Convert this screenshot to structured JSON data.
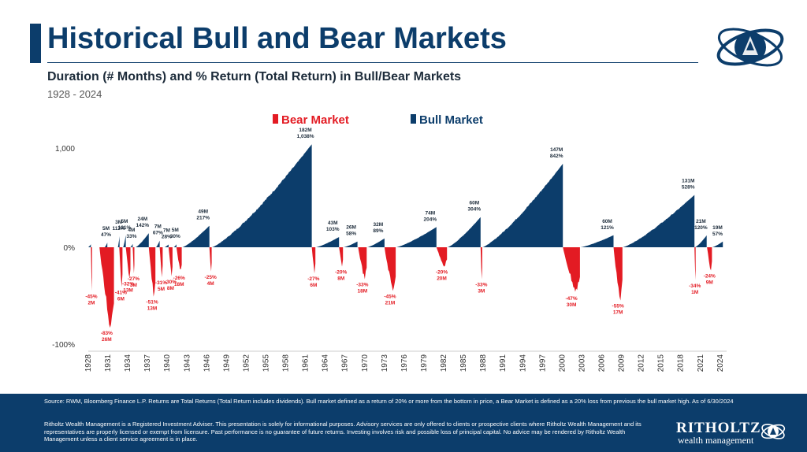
{
  "header": {
    "title": "Historical Bull and Bear Markets",
    "subtitle": "Duration (# Months) and % Return (Total Return) in Bull/Bear Markets",
    "date_range": "1928 - 2024"
  },
  "colors": {
    "bull": "#0c3d6b",
    "bear": "#e31b23",
    "text": "#1c2b3a"
  },
  "chart_data": {
    "type": "area",
    "legend": {
      "placement": "top-center",
      "entries": [
        {
          "name": "Bear Market",
          "color": "#e31b23"
        },
        {
          "name": "Bull Market",
          "color": "#0c3d6b"
        }
      ]
    },
    "y_ticks": [
      {
        "value": 1000,
        "label": "1,000"
      },
      {
        "value": 0,
        "label": "0%"
      },
      {
        "value": -100,
        "label": "-100%"
      }
    ],
    "ylim": [
      -100,
      1000
    ],
    "x_ticks": [
      "1928",
      "1931",
      "1934",
      "1937",
      "1940",
      "1943",
      "1946",
      "1949",
      "1952",
      "1955",
      "1958",
      "1961",
      "1964",
      "1967",
      "1970",
      "1973",
      "1976",
      "1979",
      "1982",
      "1985",
      "1988",
      "1991",
      "1994",
      "1997",
      "2000",
      "2003",
      "2006",
      "2009",
      "2012",
      "2015",
      "2018",
      "2021",
      "2024"
    ],
    "xlim": [
      1928,
      2024.5
    ],
    "series": [
      {
        "name": "Bull Market",
        "type": "bull",
        "markets": [
          {
            "start": 1928.0,
            "end": 1928.4,
            "months": "",
            "return": 30,
            "label": ""
          },
          {
            "start": 1930.5,
            "end": 1930.9,
            "months": "5M",
            "return": 47,
            "label": "47%"
          },
          {
            "start": 1932.5,
            "end": 1932.75,
            "months": "3M",
            "return": 112,
            "label": "112%"
          },
          {
            "start": 1933.3,
            "end": 1933.7,
            "months": "5M",
            "return": 121,
            "label": "121%"
          },
          {
            "start": 1934.4,
            "end": 1934.75,
            "months": "4M",
            "return": 33,
            "label": "33%"
          },
          {
            "start": 1935.2,
            "end": 1937.2,
            "months": "24M",
            "return": 142,
            "label": "142%"
          },
          {
            "start": 1938.3,
            "end": 1938.85,
            "months": "7M",
            "return": 67,
            "label": "67%"
          },
          {
            "start": 1939.6,
            "end": 1940.2,
            "months": "7M",
            "return": 28,
            "label": "28%"
          },
          {
            "start": 1941.0,
            "end": 1941.4,
            "months": "5M",
            "return": 30,
            "label": "30%"
          },
          {
            "start": 1942.3,
            "end": 1946.4,
            "months": "49M",
            "return": 217,
            "label": "217%"
          },
          {
            "start": 1946.8,
            "end": 1961.95,
            "months": "182M",
            "return": 1038,
            "label": "1,038%"
          },
          {
            "start": 1962.6,
            "end": 1966.1,
            "months": "43M",
            "return": 103,
            "label": "103%"
          },
          {
            "start": 1966.8,
            "end": 1968.9,
            "months": "26M",
            "return": 58,
            "label": "58%"
          },
          {
            "start": 1970.4,
            "end": 1973.0,
            "months": "32M",
            "return": 89,
            "label": "89%"
          },
          {
            "start": 1974.8,
            "end": 1980.9,
            "months": "74M",
            "return": 204,
            "label": "204%"
          },
          {
            "start": 1982.6,
            "end": 1987.6,
            "months": "60M",
            "return": 304,
            "label": "304%"
          },
          {
            "start": 1987.9,
            "end": 2000.1,
            "months": "147M",
            "return": 842,
            "label": "842%"
          },
          {
            "start": 2002.8,
            "end": 2007.8,
            "months": "60M",
            "return": 121,
            "label": "121%"
          },
          {
            "start": 2009.2,
            "end": 2020.1,
            "months": "131M",
            "return": 528,
            "label": "528%"
          },
          {
            "start": 2020.2,
            "end": 2021.95,
            "months": "21M",
            "return": 120,
            "label": "120%"
          },
          {
            "start": 2022.8,
            "end": 2024.4,
            "months": "19M",
            "return": 57,
            "label": "57%"
          }
        ]
      },
      {
        "name": "Bear Market",
        "type": "bear",
        "markets": [
          {
            "start": 1928.4,
            "end": 1928.55,
            "months": "2M",
            "return": -45,
            "label": "-45%"
          },
          {
            "start": 1929.7,
            "end": 1931.9,
            "months": "26M",
            "return": -83,
            "label": "-83%"
          },
          {
            "start": 1932.7,
            "end": 1933.2,
            "months": "6M",
            "return": -41,
            "label": "-41%"
          },
          {
            "start": 1933.7,
            "end": 1934.4,
            "months": "13M",
            "return": -32,
            "label": "-32%"
          },
          {
            "start": 1934.75,
            "end": 1935.0,
            "months": "3M",
            "return": -27,
            "label": "-27%"
          },
          {
            "start": 1937.2,
            "end": 1938.2,
            "months": "13M",
            "return": -51,
            "label": "-51%"
          },
          {
            "start": 1938.85,
            "end": 1939.3,
            "months": "5M",
            "return": -31,
            "label": "-31%"
          },
          {
            "start": 1940.2,
            "end": 1940.8,
            "months": "8M",
            "return": -30,
            "label": "-30%"
          },
          {
            "start": 1941.4,
            "end": 1942.2,
            "months": "18M",
            "return": -26,
            "label": "-26%"
          },
          {
            "start": 1946.4,
            "end": 1946.75,
            "months": "4M",
            "return": -25,
            "label": "-25%"
          },
          {
            "start": 1961.95,
            "end": 1962.5,
            "months": "6M",
            "return": -27,
            "label": "-27%"
          },
          {
            "start": 1966.1,
            "end": 1966.7,
            "months": "8M",
            "return": -20,
            "label": "-20%"
          },
          {
            "start": 1969.0,
            "end": 1970.3,
            "months": "18M",
            "return": -33,
            "label": "-33%"
          },
          {
            "start": 1973.0,
            "end": 1974.7,
            "months": "21M",
            "return": -45,
            "label": "-45%"
          },
          {
            "start": 1980.9,
            "end": 1982.5,
            "months": "20M",
            "return": -20,
            "label": "-20%"
          },
          {
            "start": 1987.6,
            "end": 1987.85,
            "months": "3M",
            "return": -33,
            "label": "-33%"
          },
          {
            "start": 2000.1,
            "end": 2002.7,
            "months": "30M",
            "return": -47,
            "label": "-47%"
          },
          {
            "start": 2007.8,
            "end": 2009.15,
            "months": "17M",
            "return": -55,
            "label": "-55%"
          },
          {
            "start": 2020.1,
            "end": 2020.2,
            "months": "1M",
            "return": -34,
            "label": "-34%"
          },
          {
            "start": 2022.0,
            "end": 2022.75,
            "months": "9M",
            "return": -24,
            "label": "-24%"
          }
        ]
      }
    ]
  },
  "footer": {
    "source": "Source: RWM, Bloomberg Finance L.P. Returns are Total Returns (Total Return includes dividends). Bull market defined as a return of 20% or more from the bottom in price, a Bear Market is defined as a 20% loss from previous the bull market high. As of 6/30/2024",
    "disclaimer": "Ritholtz Wealth Management is a Registered Investment Adviser. This presentation is solely for informational purposes. Advisory services are only offered to clients or prospective clients where Ritholtz Wealth Management and its representatives are properly licensed or exempt from licensure. Past performance is no guarantee of future returns. Investing involves risk and possible loss of principal capital. No advice may be rendered by Ritholtz Wealth Management unless a client service agreement is in place.",
    "brand": "RITHOLTZ",
    "brand_sub": "wealth management"
  }
}
